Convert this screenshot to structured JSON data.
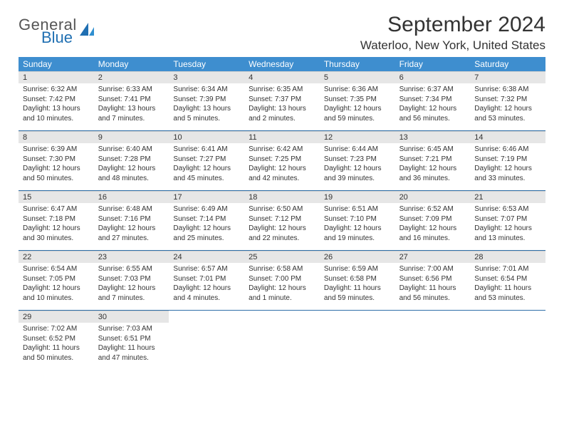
{
  "logo": {
    "general": "General",
    "blue": "Blue"
  },
  "header": {
    "month_title": "September 2024",
    "location": "Waterloo, New York, United States"
  },
  "colors": {
    "header_bg": "#3e8ecf",
    "header_text": "#ffffff",
    "daynum_bg": "#e6e6e6",
    "week_rule": "#2f6fa8",
    "logo_blue": "#1f6fb2",
    "text": "#333333",
    "bg": "#ffffff"
  },
  "day_names": [
    "Sunday",
    "Monday",
    "Tuesday",
    "Wednesday",
    "Thursday",
    "Friday",
    "Saturday"
  ],
  "weeks": [
    [
      {
        "n": "1",
        "sr": "Sunrise: 6:32 AM",
        "ss": "Sunset: 7:42 PM",
        "dl": "Daylight: 13 hours and 10 minutes."
      },
      {
        "n": "2",
        "sr": "Sunrise: 6:33 AM",
        "ss": "Sunset: 7:41 PM",
        "dl": "Daylight: 13 hours and 7 minutes."
      },
      {
        "n": "3",
        "sr": "Sunrise: 6:34 AM",
        "ss": "Sunset: 7:39 PM",
        "dl": "Daylight: 13 hours and 5 minutes."
      },
      {
        "n": "4",
        "sr": "Sunrise: 6:35 AM",
        "ss": "Sunset: 7:37 PM",
        "dl": "Daylight: 13 hours and 2 minutes."
      },
      {
        "n": "5",
        "sr": "Sunrise: 6:36 AM",
        "ss": "Sunset: 7:35 PM",
        "dl": "Daylight: 12 hours and 59 minutes."
      },
      {
        "n": "6",
        "sr": "Sunrise: 6:37 AM",
        "ss": "Sunset: 7:34 PM",
        "dl": "Daylight: 12 hours and 56 minutes."
      },
      {
        "n": "7",
        "sr": "Sunrise: 6:38 AM",
        "ss": "Sunset: 7:32 PM",
        "dl": "Daylight: 12 hours and 53 minutes."
      }
    ],
    [
      {
        "n": "8",
        "sr": "Sunrise: 6:39 AM",
        "ss": "Sunset: 7:30 PM",
        "dl": "Daylight: 12 hours and 50 minutes."
      },
      {
        "n": "9",
        "sr": "Sunrise: 6:40 AM",
        "ss": "Sunset: 7:28 PM",
        "dl": "Daylight: 12 hours and 48 minutes."
      },
      {
        "n": "10",
        "sr": "Sunrise: 6:41 AM",
        "ss": "Sunset: 7:27 PM",
        "dl": "Daylight: 12 hours and 45 minutes."
      },
      {
        "n": "11",
        "sr": "Sunrise: 6:42 AM",
        "ss": "Sunset: 7:25 PM",
        "dl": "Daylight: 12 hours and 42 minutes."
      },
      {
        "n": "12",
        "sr": "Sunrise: 6:44 AM",
        "ss": "Sunset: 7:23 PM",
        "dl": "Daylight: 12 hours and 39 minutes."
      },
      {
        "n": "13",
        "sr": "Sunrise: 6:45 AM",
        "ss": "Sunset: 7:21 PM",
        "dl": "Daylight: 12 hours and 36 minutes."
      },
      {
        "n": "14",
        "sr": "Sunrise: 6:46 AM",
        "ss": "Sunset: 7:19 PM",
        "dl": "Daylight: 12 hours and 33 minutes."
      }
    ],
    [
      {
        "n": "15",
        "sr": "Sunrise: 6:47 AM",
        "ss": "Sunset: 7:18 PM",
        "dl": "Daylight: 12 hours and 30 minutes."
      },
      {
        "n": "16",
        "sr": "Sunrise: 6:48 AM",
        "ss": "Sunset: 7:16 PM",
        "dl": "Daylight: 12 hours and 27 minutes."
      },
      {
        "n": "17",
        "sr": "Sunrise: 6:49 AM",
        "ss": "Sunset: 7:14 PM",
        "dl": "Daylight: 12 hours and 25 minutes."
      },
      {
        "n": "18",
        "sr": "Sunrise: 6:50 AM",
        "ss": "Sunset: 7:12 PM",
        "dl": "Daylight: 12 hours and 22 minutes."
      },
      {
        "n": "19",
        "sr": "Sunrise: 6:51 AM",
        "ss": "Sunset: 7:10 PM",
        "dl": "Daylight: 12 hours and 19 minutes."
      },
      {
        "n": "20",
        "sr": "Sunrise: 6:52 AM",
        "ss": "Sunset: 7:09 PM",
        "dl": "Daylight: 12 hours and 16 minutes."
      },
      {
        "n": "21",
        "sr": "Sunrise: 6:53 AM",
        "ss": "Sunset: 7:07 PM",
        "dl": "Daylight: 12 hours and 13 minutes."
      }
    ],
    [
      {
        "n": "22",
        "sr": "Sunrise: 6:54 AM",
        "ss": "Sunset: 7:05 PM",
        "dl": "Daylight: 12 hours and 10 minutes."
      },
      {
        "n": "23",
        "sr": "Sunrise: 6:55 AM",
        "ss": "Sunset: 7:03 PM",
        "dl": "Daylight: 12 hours and 7 minutes."
      },
      {
        "n": "24",
        "sr": "Sunrise: 6:57 AM",
        "ss": "Sunset: 7:01 PM",
        "dl": "Daylight: 12 hours and 4 minutes."
      },
      {
        "n": "25",
        "sr": "Sunrise: 6:58 AM",
        "ss": "Sunset: 7:00 PM",
        "dl": "Daylight: 12 hours and 1 minute."
      },
      {
        "n": "26",
        "sr": "Sunrise: 6:59 AM",
        "ss": "Sunset: 6:58 PM",
        "dl": "Daylight: 11 hours and 59 minutes."
      },
      {
        "n": "27",
        "sr": "Sunrise: 7:00 AM",
        "ss": "Sunset: 6:56 PM",
        "dl": "Daylight: 11 hours and 56 minutes."
      },
      {
        "n": "28",
        "sr": "Sunrise: 7:01 AM",
        "ss": "Sunset: 6:54 PM",
        "dl": "Daylight: 11 hours and 53 minutes."
      }
    ],
    [
      {
        "n": "29",
        "sr": "Sunrise: 7:02 AM",
        "ss": "Sunset: 6:52 PM",
        "dl": "Daylight: 11 hours and 50 minutes."
      },
      {
        "n": "30",
        "sr": "Sunrise: 7:03 AM",
        "ss": "Sunset: 6:51 PM",
        "dl": "Daylight: 11 hours and 47 minutes."
      },
      null,
      null,
      null,
      null,
      null
    ]
  ]
}
